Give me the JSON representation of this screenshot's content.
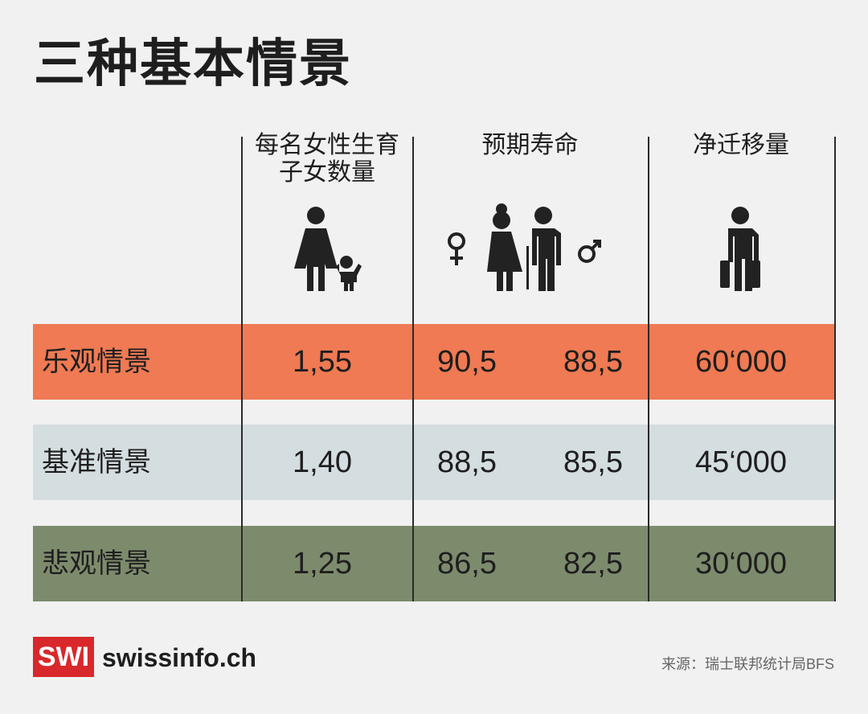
{
  "header": {
    "title": "三种基本情景"
  },
  "table": {
    "columns": [
      "每名女性生育子女数量",
      "预期寿命",
      "净迁移量"
    ],
    "rows": [
      {
        "label": "乐观情景",
        "values": [
          "1,55",
          "90,5",
          "88,5",
          "60‘000"
        ]
      },
      {
        "label": "基准情景",
        "values": [
          "1,40",
          "88,5",
          "85,5",
          "45‘000"
        ]
      },
      {
        "label": "悲观情景",
        "values": [
          "1,25",
          "86,5",
          "82,5",
          "30‘000"
        ]
      }
    ]
  },
  "footer": {
    "logo": "SWI",
    "site": "swissinfo.ch",
    "source": "来源：瑞士联邦统计局BFS"
  }
}
